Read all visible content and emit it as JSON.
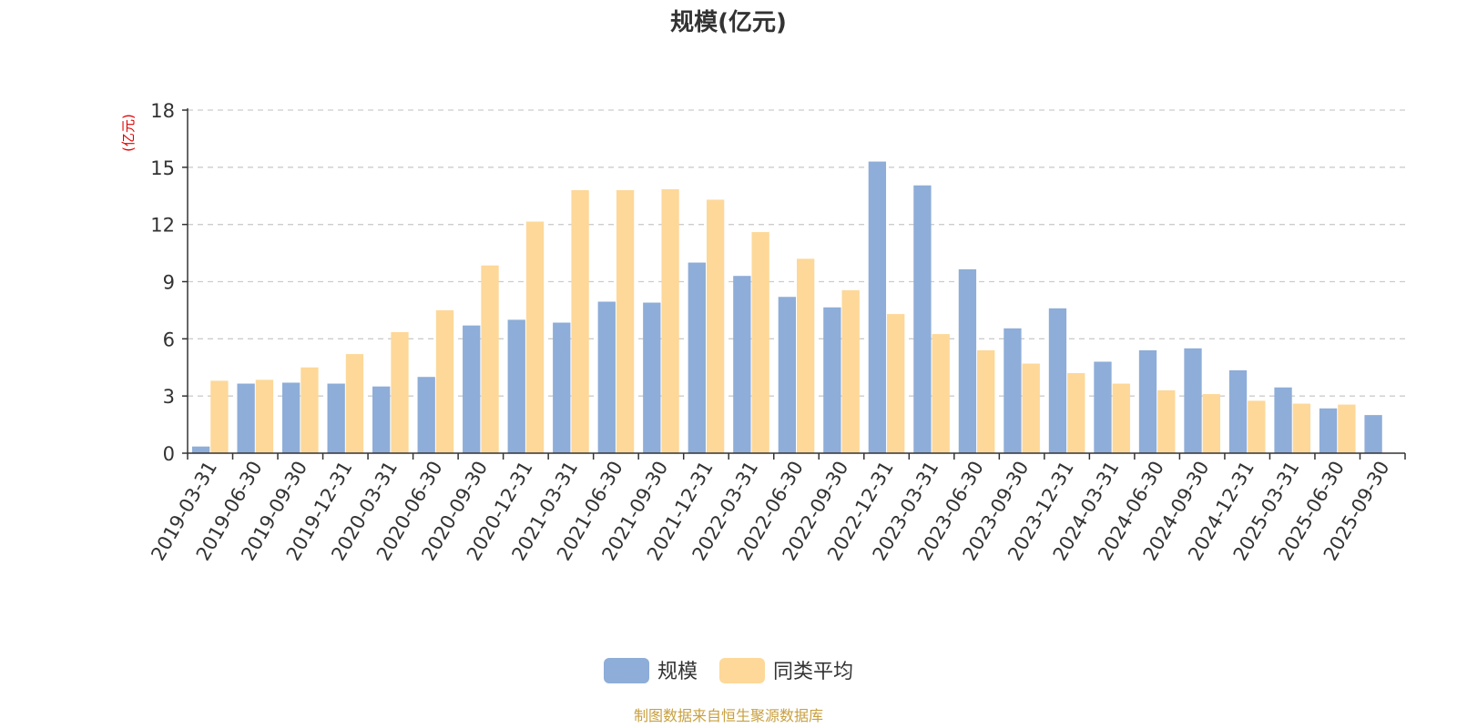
{
  "chart_data": {
    "type": "bar",
    "title": "规模(亿元)",
    "ylabel": "(亿元)",
    "xlabel": "",
    "ylim": [
      0,
      18
    ],
    "yticks": [
      0,
      3,
      6,
      9,
      12,
      15,
      18
    ],
    "grid": true,
    "legend_position": "bottom-center",
    "categories": [
      "2019-03-31",
      "2019-06-30",
      "2019-09-30",
      "2019-12-31",
      "2020-03-31",
      "2020-06-30",
      "2020-09-30",
      "2020-12-31",
      "2021-03-31",
      "2021-06-30",
      "2021-09-30",
      "2021-12-31",
      "2022-03-31",
      "2022-06-30",
      "2022-09-30",
      "2022-12-31",
      "2023-03-31",
      "2023-06-30",
      "2023-09-30",
      "2023-12-31",
      "2024-03-31",
      "2024-06-30",
      "2024-09-30",
      "2024-12-31",
      "2025-03-31",
      "2025-06-30",
      "2025-09-30"
    ],
    "series": [
      {
        "name": "规模",
        "color": "#8eadd8",
        "values": [
          0.35,
          3.65,
          3.7,
          3.65,
          3.5,
          4.0,
          6.7,
          7.0,
          6.85,
          7.95,
          7.9,
          10.0,
          9.3,
          8.2,
          7.65,
          15.3,
          14.05,
          9.65,
          6.55,
          7.6,
          4.8,
          5.4,
          5.5,
          4.35,
          3.45,
          2.35,
          2.0
        ]
      },
      {
        "name": "同类平均",
        "color": "#fdd899",
        "values": [
          3.8,
          3.85,
          4.5,
          5.2,
          6.35,
          7.5,
          9.85,
          12.15,
          13.8,
          13.8,
          13.85,
          13.3,
          11.6,
          10.2,
          8.55,
          7.3,
          6.25,
          5.4,
          4.7,
          4.2,
          3.65,
          3.3,
          3.1,
          2.75,
          2.6,
          2.55,
          null
        ]
      }
    ]
  },
  "footer": {
    "source": "制图数据来自恒生聚源数据库"
  }
}
